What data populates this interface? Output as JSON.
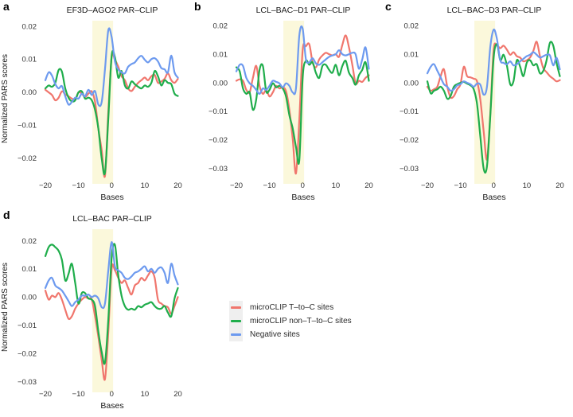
{
  "figure": {
    "background": "#ffffff",
    "text_color": "#1a1a1a",
    "tick_color": "#333333"
  },
  "legend": {
    "key_bg": "#efefef",
    "items": [
      {
        "label": "microCLIP T–to–C sites",
        "color": "#F0766D"
      },
      {
        "label": "microCLIP non–T–to–C sites",
        "color": "#1FAD4B"
      },
      {
        "label": "Negative sites",
        "color": "#6D9AEF"
      }
    ]
  },
  "chart_data": [
    {
      "id": "a",
      "letter": "a",
      "type": "line",
      "title": "EF3D–AGO2 PAR–CLIP",
      "xlabel": "Bases",
      "ylabel": "Normalized PARS scores",
      "x_range": [
        -20,
        20
      ],
      "xlim": [
        -20,
        20
      ],
      "ylim": [
        -0.0262,
        0.0212
      ],
      "x_tick_labels": [
        "−20",
        "−10",
        "0",
        "10",
        "20"
      ],
      "x_tick_values": [
        -20,
        -10,
        0,
        10,
        20
      ],
      "y_tick_labels": [
        "0.02",
        "0.01",
        "0.00",
        "−0.01",
        "−0.02"
      ],
      "y_tick_values": [
        0.02,
        0.01,
        0.0,
        -0.01,
        -0.02
      ],
      "grid": false,
      "highlight_band": {
        "x0": -5.8,
        "x1": 0.45,
        "color": "#FBF8DB"
      },
      "series": [
        {
          "name": "microCLIP T–to–C sites",
          "color": "#F0766D",
          "values": [
            0.0007,
            -0.0001,
            -0.0009,
            -0.0025,
            -0.0017,
            0.0002,
            -0.0007,
            -0.0013,
            -0.002,
            -0.0023,
            -0.0001,
            -0.0005,
            -0.0015,
            -0.0005,
            0.0002,
            -0.003,
            -0.0111,
            -0.0177,
            -0.0255,
            -0.006,
            0.0107,
            0.0098,
            0.0077,
            0.0048,
            0.0036,
            0.0011,
            0.0003,
            0.0016,
            0.0028,
            0.0036,
            0.0044,
            0.0036,
            0.0048,
            0.0052,
            0.0028,
            0.0032,
            0.004,
            0.0057,
            0.0036,
            0.0028,
            0.004
          ]
        },
        {
          "name": "microCLIP non–T–to–C sites",
          "color": "#1FAD4B",
          "values": [
            0.0011,
            0.002,
            0.0016,
            0.0028,
            0.0067,
            0.0062,
            0.0011,
            -0.0017,
            -0.0028,
            -0.0025,
            -0.0001,
            0.0002,
            -0.002,
            -0.0017,
            -0.0025,
            -0.0054,
            -0.0111,
            -0.0202,
            -0.0245,
            -0.008,
            0.011,
            0.0106,
            0.0044,
            0.0064,
            0.002,
            0.0011,
            0.0032,
            0.0024,
            0.0016,
            0.0011,
            0.002,
            0.0016,
            0.0028,
            0.0064,
            0.0048,
            0.002,
            0.0036,
            0.0028,
            0.0024,
            -0.0005,
            -0.0012
          ]
        },
        {
          "name": "Negative sites",
          "color": "#6D9AEF",
          "values": [
            0.0036,
            0.006,
            0.005,
            0.0024,
            0.0011,
            0.0018,
            -0.0013,
            -0.0038,
            -0.003,
            -0.0017,
            -0.002,
            -0.0005,
            -0.0013,
            0.0007,
            -0.0009,
            0.0003,
            -0.0038,
            -0.003,
            0.0069,
            0.0188,
            0.0167,
            0.0093,
            0.0069,
            0.006,
            0.0057,
            0.0077,
            0.0085,
            0.009,
            0.0103,
            0.011,
            0.0098,
            0.009,
            0.01,
            0.0103,
            0.0093,
            0.0073,
            0.0069,
            0.006,
            0.0111,
            0.006,
            0.0044
          ]
        }
      ]
    },
    {
      "id": "b",
      "letter": "b",
      "type": "line",
      "title": "LCL–BAC–D1 PAR–CLIP",
      "xlabel": "Bases",
      "ylabel": "",
      "x_range": [
        -20,
        20
      ],
      "xlim": [
        -20,
        20
      ],
      "ylim": [
        -0.0335,
        0.0212
      ],
      "x_tick_labels": [
        "−20",
        "−10",
        "0",
        "10",
        "20"
      ],
      "x_tick_values": [
        -20,
        -10,
        0,
        10,
        20
      ],
      "y_tick_labels": [
        "0.02",
        "0.01",
        "0.00",
        "−0.01",
        "−0.02",
        "−0.03"
      ],
      "y_tick_values": [
        0.02,
        0.01,
        0.0,
        -0.01,
        -0.02,
        -0.03
      ],
      "grid": false,
      "highlight_band": {
        "x0": -5.8,
        "x1": 0.45,
        "color": "#FBF8DB"
      },
      "series": [
        {
          "name": "microCLIP T–to–C sites",
          "color": "#F0766D",
          "values": [
            0.0007,
            0.0012,
            0.0007,
            -0.0025,
            -0.0034,
            0.0017,
            0.0059,
            -0.0011,
            -0.0039,
            -0.0025,
            -0.0048,
            -0.0034,
            -0.0011,
            -0.002,
            -0.0016,
            -0.003,
            -0.0095,
            -0.0197,
            -0.0318,
            -0.013,
            0.0114,
            0.0128,
            0.0135,
            0.0072,
            0.0054,
            0.0082,
            0.0096,
            0.0105,
            0.01,
            0.0096,
            0.01,
            0.0091,
            0.0133,
            0.0166,
            0.0124,
            0.0063,
            -0.0002,
            0.0007,
            0.0003,
            0.0017,
            0.0026
          ]
        },
        {
          "name": "microCLIP non–T–to–C sites",
          "color": "#1FAD4B",
          "values": [
            0.0054,
            0.004,
            -0.002,
            -0.0039,
            -0.0034,
            -0.0095,
            -0.0058,
            0.0045,
            0.0059,
            -0.003,
            -0.0025,
            -0.0002,
            -0.0016,
            -0.0011,
            -0.002,
            -0.0048,
            -0.0114,
            -0.016,
            -0.0225,
            -0.0272,
            0.0017,
            0.0077,
            0.0063,
            0.0072,
            0.0035,
            0.0017,
            0.0059,
            0.0063,
            0.0045,
            0.0035,
            0.0063,
            0.0026,
            0.0059,
            0.0077,
            0.0035,
            0.0017,
            -0.0007,
            0.0026,
            0.0045,
            0.0072,
            0.0007
          ]
        },
        {
          "name": "Negative sites",
          "color": "#6D9AEF",
          "values": [
            0.004,
            0.0063,
            0.0059,
            0.0017,
            -0.0002,
            -0.0011,
            -0.0025,
            -0.0039,
            -0.002,
            -0.0025,
            -0.0011,
            0.0007,
            0.0003,
            -0.0002,
            -0.0016,
            -0.0002,
            -0.0011,
            -0.0034,
            -0.002,
            0.0166,
            0.019,
            0.0082,
            0.0072,
            0.0086,
            0.0068,
            0.0063,
            0.0072,
            0.0082,
            0.0091,
            0.0096,
            0.01,
            0.0114,
            0.01,
            0.0096,
            0.01,
            0.0105,
            0.01,
            0.0049,
            0.0082,
            0.0124,
            0.0049
          ]
        }
      ]
    },
    {
      "id": "c",
      "letter": "c",
      "type": "line",
      "title": "LCL–BAC–D3 PAR–CLIP",
      "xlabel": "Bases",
      "ylabel": "",
      "x_range": [
        -20,
        20
      ],
      "xlim": [
        -20,
        20
      ],
      "ylim": [
        -0.0335,
        0.0212
      ],
      "x_tick_labels": [
        "−20",
        "−10",
        "0",
        "10",
        "20"
      ],
      "x_tick_values": [
        -20,
        -10,
        0,
        10,
        20
      ],
      "y_tick_labels": [
        "0.02",
        "0.01",
        "0.00",
        "−0.01",
        "−0.02",
        "−0.03"
      ],
      "y_tick_values": [
        0.02,
        0.01,
        0.0,
        -0.01,
        -0.02,
        -0.03
      ],
      "grid": false,
      "highlight_band": {
        "x0": -5.8,
        "x1": 0.45,
        "color": "#FBF8DB"
      },
      "series": [
        {
          "name": "microCLIP T–to–C sites",
          "color": "#F0766D",
          "values": [
            -0.0014,
            -0.0028,
            -0.0023,
            -0.0014,
            0.0023,
            0.0047,
            -0.0014,
            -0.0051,
            -0.0047,
            -0.0023,
            -0.0005,
            0.0056,
            0.0023,
            0.0019,
            0.0014,
            0.0005,
            -0.006,
            -0.0172,
            -0.0269,
            -0.0107,
            0.0116,
            0.013,
            0.0121,
            0.013,
            0.0116,
            0.0098,
            0.0107,
            0.0093,
            0.0088,
            0.0075,
            0.0079,
            0.0088,
            0.0112,
            0.0144,
            0.0093,
            0.0051,
            0.0037,
            0.0023,
            0.0014,
            0.0005,
            0.0009
          ]
        },
        {
          "name": "microCLIP non–T–to–C sites",
          "color": "#1FAD4B",
          "values": [
            0.0005,
            -0.0037,
            -0.0028,
            -0.0023,
            -0.0014,
            -0.0028,
            -0.0056,
            -0.0047,
            -0.0014,
            -0.0005,
            0.0,
            0.0003,
            -0.0003,
            -0.0009,
            -0.0023,
            -0.0074,
            -0.019,
            -0.0302,
            -0.0293,
            -0.0116,
            0.0088,
            0.0135,
            0.0079,
            0.0098,
            0.0061,
            -0.0005,
            0.0005,
            0.0079,
            0.0056,
            0.0023,
            0.007,
            0.0079,
            0.0061,
            0.0065,
            0.0033,
            0.0042,
            0.0079,
            0.014,
            0.013,
            0.007,
            0.0023
          ]
        },
        {
          "name": "Negative sites",
          "color": "#6D9AEF",
          "values": [
            0.0033,
            0.0056,
            0.0065,
            0.0042,
            0.0019,
            -0.0005,
            -0.0014,
            -0.0028,
            -0.0023,
            -0.0009,
            -0.0005,
            0.0005,
            0.0,
            -0.0005,
            -0.0014,
            -0.0003,
            -0.0007,
            -0.0042,
            -0.0014,
            0.0126,
            0.0186,
            0.0154,
            0.0079,
            0.007,
            0.0065,
            0.0075,
            0.0061,
            0.0065,
            0.0075,
            0.0084,
            0.0093,
            0.0098,
            0.0107,
            0.0098,
            0.0088,
            0.0093,
            0.0098,
            0.0096,
            0.0061,
            0.0088,
            0.0047
          ]
        }
      ]
    },
    {
      "id": "d",
      "letter": "d",
      "type": "line",
      "title": "LCL–BAC PAR–CLIP",
      "xlabel": "Bases",
      "ylabel": "Normalized PARS scores",
      "x_range": [
        -20,
        20
      ],
      "xlim": [
        -20,
        20
      ],
      "ylim": [
        -0.0318,
        0.0235
      ],
      "x_tick_labels": [
        "−20",
        "−10",
        "0",
        "10",
        "20"
      ],
      "x_tick_values": [
        -20,
        -10,
        0,
        10,
        20
      ],
      "y_tick_labels": [
        "0.02",
        "0.01",
        "0.00",
        "−0.01",
        "−0.02",
        "−0.03"
      ],
      "y_tick_values": [
        0.02,
        0.01,
        0.0,
        -0.01,
        -0.02,
        -0.03
      ],
      "grid": false,
      "highlight_band": {
        "x0": -5.8,
        "x1": 0.45,
        "color": "#FBF8DB"
      },
      "series": [
        {
          "name": "microCLIP T–to–C sites",
          "color": "#F0766D",
          "values": [
            0.0023,
            -0.0009,
            0.0005,
            0.0,
            0.0014,
            -0.0009,
            -0.0045,
            -0.0077,
            -0.0068,
            -0.0041,
            -0.0023,
            -0.0009,
            0.0,
            -0.0005,
            -0.0009,
            -0.0068,
            -0.0141,
            -0.0223,
            -0.0291,
            -0.0123,
            0.01,
            0.0095,
            0.0068,
            0.005,
            0.0059,
            0.0032,
            0.0009,
            0.0041,
            0.005,
            0.0068,
            0.0059,
            0.0077,
            0.0091,
            0.0068,
            -0.0009,
            -0.0023,
            -0.0032,
            -0.0036,
            -0.0059,
            -0.0032,
            0.0
          ]
        },
        {
          "name": "microCLIP non–T–to–C sites",
          "color": "#1FAD4B",
          "values": [
            0.0145,
            0.0177,
            0.0186,
            0.0177,
            0.0164,
            0.0132,
            0.0059,
            0.0082,
            0.0118,
            0.005,
            -0.0023,
            0.0014,
            0.0014,
            -0.0005,
            -0.0009,
            -0.0032,
            -0.0123,
            -0.0195,
            -0.0232,
            -0.008,
            0.014,
            0.0185,
            0.0077,
            0.0005,
            -0.0032,
            -0.0045,
            -0.0041,
            -0.0045,
            -0.0032,
            -0.0036,
            -0.0027,
            -0.0023,
            -0.0018,
            -0.0032,
            -0.0041,
            -0.0041,
            -0.0032,
            -0.0055,
            -0.0068,
            -0.0005,
            0.0032
          ]
        },
        {
          "name": "Negative sites",
          "color": "#6D9AEF",
          "values": [
            0.0032,
            0.0059,
            0.0068,
            0.0041,
            0.0032,
            0.0023,
            0.0005,
            -0.0014,
            -0.0032,
            -0.0018,
            -0.0009,
            0.0005,
            0.0005,
            0.0009,
            0.0,
            0.0005,
            -0.0005,
            -0.0036,
            -0.0023,
            0.0095,
            0.0195,
            0.0109,
            0.0095,
            0.0086,
            0.0068,
            0.0064,
            0.0073,
            0.0086,
            0.0091,
            0.01,
            0.0109,
            0.0091,
            0.01,
            0.0086,
            0.01,
            0.0105,
            0.0086,
            0.005,
            0.0118,
            0.0077,
            0.0045
          ]
        }
      ]
    }
  ]
}
